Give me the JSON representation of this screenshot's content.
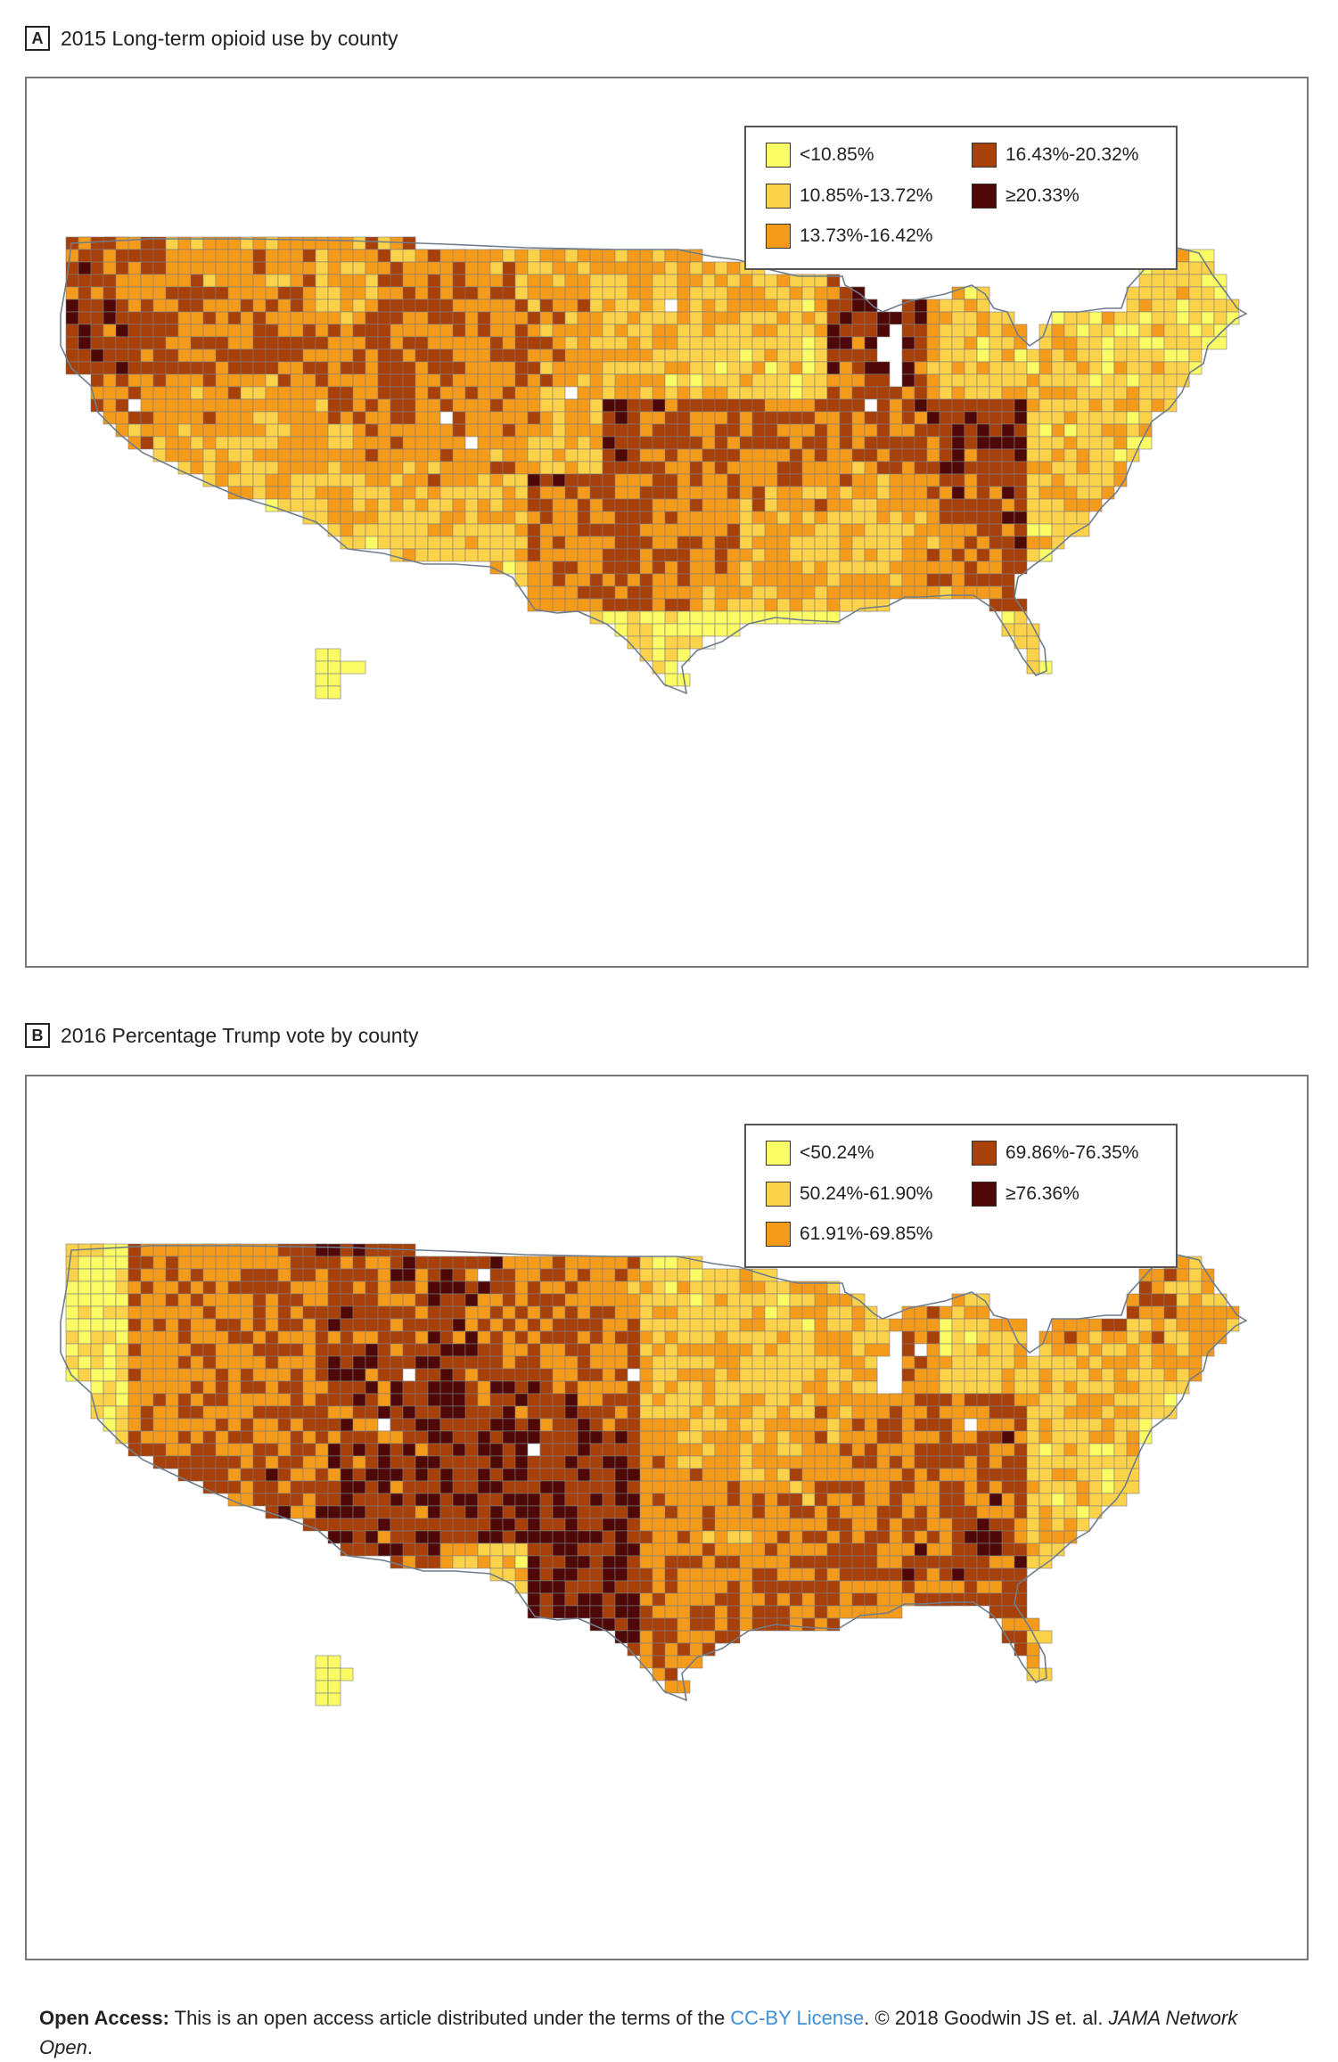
{
  "panels": [
    {
      "letter": "A",
      "title": "2015 Long-term opioid use by county",
      "legend": [
        {
          "label": "<10.85%",
          "color": "#fbfb66"
        },
        {
          "label": "10.85%-13.72%",
          "color": "#fcd24a"
        },
        {
          "label": "13.73%-16.42%",
          "color": "#f59b1c"
        },
        {
          "label": "16.43%-20.32%",
          "color": "#a8400a"
        },
        {
          "label": "≥20.33%",
          "color": "#4e0808"
        }
      ]
    },
    {
      "letter": "B",
      "title": "2016 Percentage Trump vote by county",
      "legend": [
        {
          "label": "<50.24%",
          "color": "#fbfb66"
        },
        {
          "label": "50.24%-61.90%",
          "color": "#fcd24a"
        },
        {
          "label": "61.91%-69.85%",
          "color": "#f59b1c"
        },
        {
          "label": "69.86%-76.35%",
          "color": "#a8400a"
        },
        {
          "label": "≥76.36%",
          "color": "#4e0808"
        }
      ]
    }
  ],
  "footer": {
    "lead": "Open Access:",
    "text1": " This is an open access article distributed under the terms of the ",
    "link": "CC-BY License",
    "text2": ". © 2018 Goodwin JS et. al. ",
    "journal": "JAMA Network Open",
    "end": "."
  }
}
